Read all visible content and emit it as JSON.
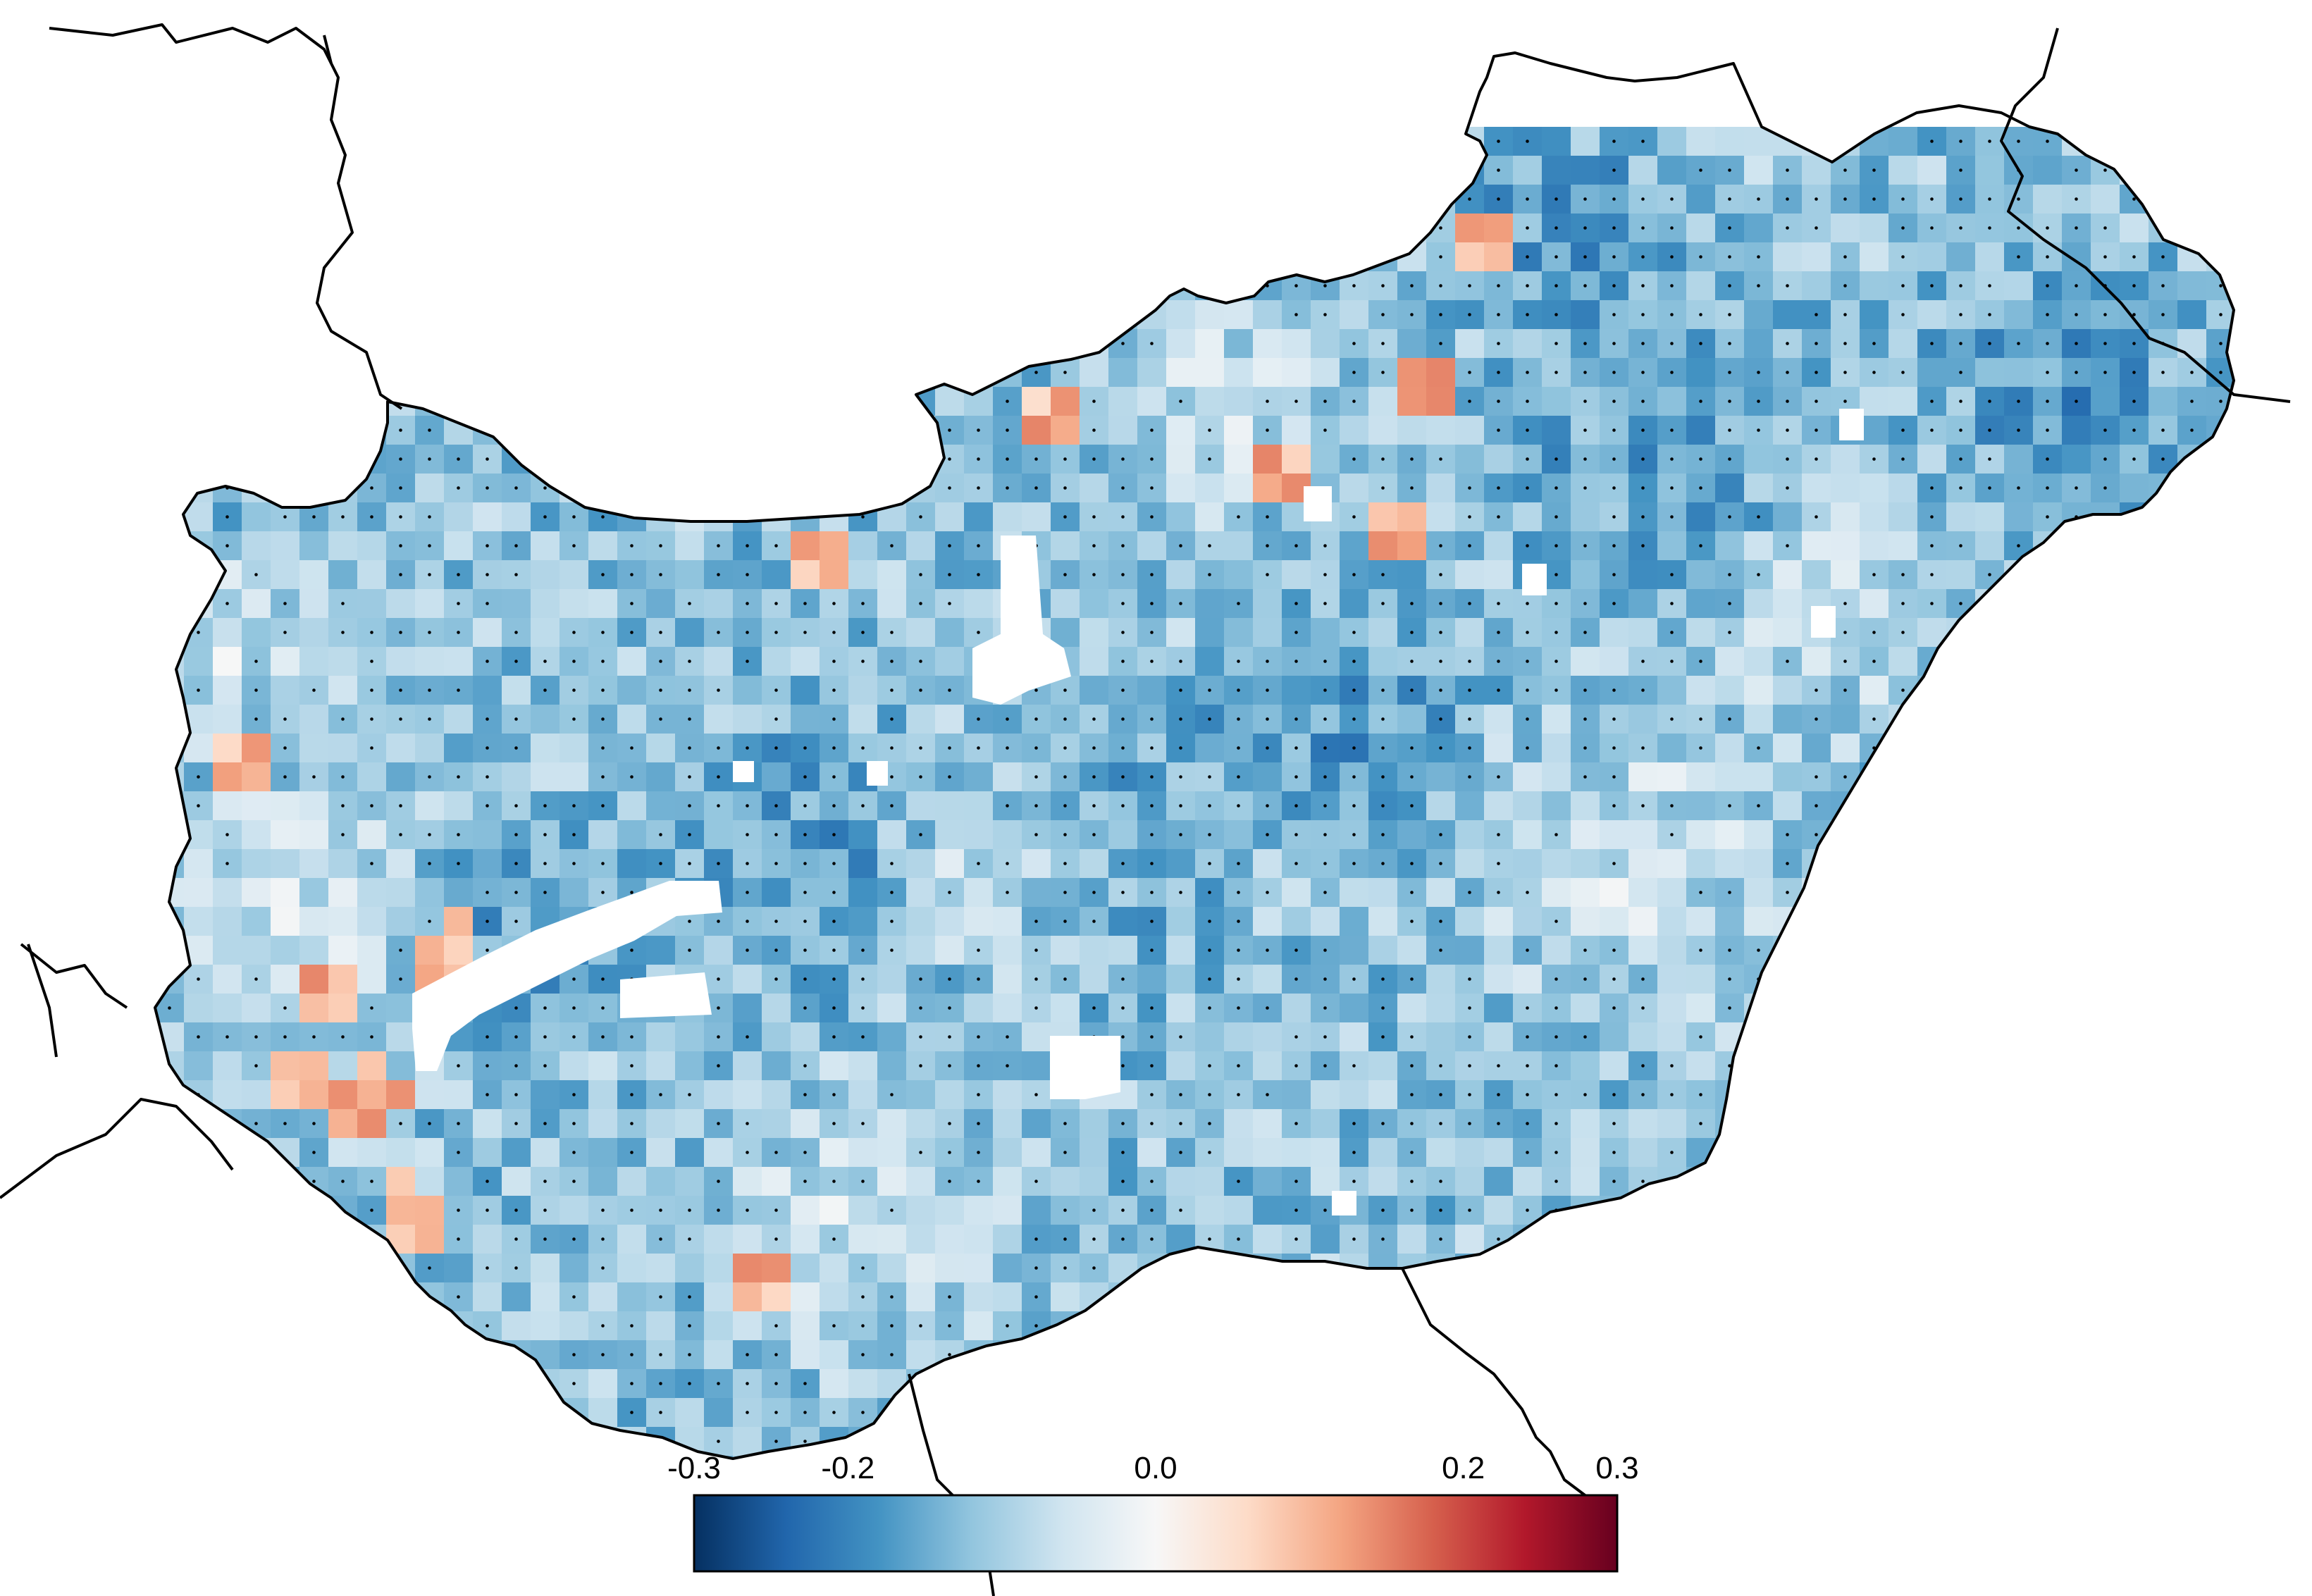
{
  "colorbar": {
    "min": -0.3,
    "max": 0.3,
    "ticks": [
      {
        "value": -0.3,
        "label": "-0.3"
      },
      {
        "value": -0.2,
        "label": "-0.2"
      },
      {
        "value": 0.0,
        "label": "0.0"
      },
      {
        "value": 0.2,
        "label": "0.2"
      },
      {
        "value": 0.3,
        "label": "0.3"
      }
    ],
    "stops": [
      "#053061",
      "#2166ac",
      "#4393c3",
      "#92c5de",
      "#d1e5f0",
      "#f7f7f7",
      "#fddbc7",
      "#f4a582",
      "#d6604d",
      "#b2182b",
      "#67001f"
    ]
  },
  "map": {
    "region": "Hungary",
    "dominant_value": -0.12,
    "significance_stippling": true
  }
}
